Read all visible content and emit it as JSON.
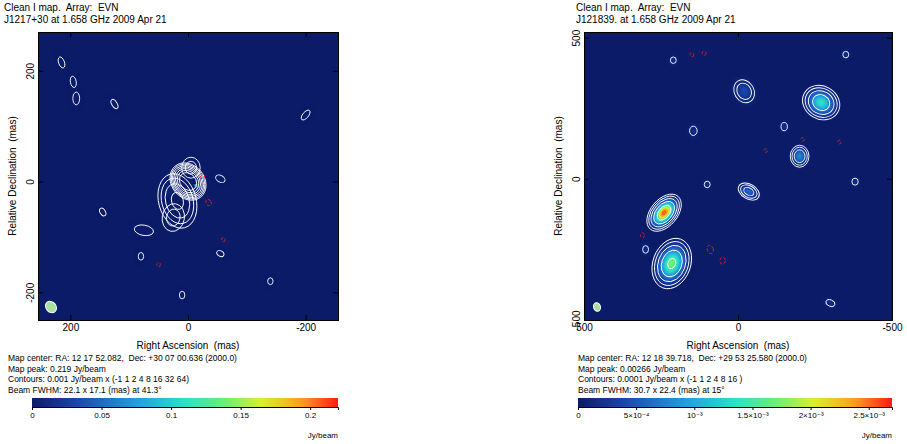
{
  "chart_data": [
    {
      "type": "contour_map",
      "title": "Clean I map.  Array:  EVN",
      "subtitle": "J1217+30 at 1.658 GHz 2009 Apr 21",
      "xlabel": "Right Ascension  (mas)",
      "ylabel": "Relative Declination  (mas)",
      "xlim": [
        255,
        -255
      ],
      "xticks": [
        200,
        0,
        -200
      ],
      "ylim": [
        -250,
        270
      ],
      "yticks": [
        -200,
        0,
        200
      ],
      "annotations": [
        "Map center: RA: 12 17 52.082,  Dec: +30 07 00.636 (2000.0)",
        "Map peak: 0.219 Jy/beam",
        "Contours: 0.001 Jy/beam x (-1 1 2 4 8 16 32 64)",
        "Beam FWHM: 22.1 x 17.1 (mas) at 41.3°"
      ],
      "contours": {
        "base": 0.001,
        "multipliers": [
          -1,
          1,
          2,
          4,
          8,
          16,
          32,
          64
        ]
      },
      "beam": {
        "major": 22.1,
        "minor": 17.1,
        "angle": 41.3
      },
      "colorbar": {
        "range": [
          0,
          0.22
        ],
        "ticks": [
          0,
          0.05,
          0.1,
          0.15,
          0.2
        ],
        "label": "Jy/beam"
      },
      "components": [
        {
          "x": 0,
          "y": 0,
          "peak": 0.219,
          "major": 26,
          "minor": 20,
          "angle": 40
        },
        {
          "x": 18,
          "y": -35,
          "peak": 0.01,
          "major": 55,
          "minor": 35,
          "angle": 15
        },
        {
          "x": 25,
          "y": -65,
          "peak": 0.003,
          "major": 40,
          "minor": 30,
          "angle": -10
        },
        {
          "x": -5,
          "y": 25,
          "peak": 0.003,
          "major": 30,
          "minor": 25,
          "angle": 0
        },
        {
          "x": 75,
          "y": -88,
          "peak": 0.0017,
          "major": 40,
          "minor": 20,
          "angle": 80
        },
        {
          "x": 215,
          "y": 215,
          "peak": 0.0016,
          "major": 25,
          "minor": 12,
          "angle": 20
        },
        {
          "x": 195,
          "y": 180,
          "peak": 0.0016,
          "major": 25,
          "minor": 12,
          "angle": 10
        },
        {
          "x": 190,
          "y": 150,
          "peak": 0.0016,
          "major": 28,
          "minor": 14,
          "angle": 0
        },
        {
          "x": 125,
          "y": 140,
          "peak": 0.0015,
          "major": 24,
          "minor": 12,
          "angle": 30
        },
        {
          "x": -55,
          "y": 5,
          "peak": 0.0016,
          "major": 22,
          "minor": 14,
          "angle": 60
        },
        {
          "x": -200,
          "y": 120,
          "peak": 0.0016,
          "major": 26,
          "minor": 12,
          "angle": -40
        },
        {
          "x": 80,
          "y": -135,
          "peak": 0.0015,
          "major": 18,
          "minor": 12,
          "angle": 0
        },
        {
          "x": 10,
          "y": -205,
          "peak": 0.0015,
          "major": 18,
          "minor": 12,
          "angle": 0
        },
        {
          "x": -55,
          "y": -130,
          "peak": 0.0015,
          "major": 18,
          "minor": 12,
          "angle": 60
        },
        {
          "x": 145,
          "y": -55,
          "peak": 0.0015,
          "major": 20,
          "minor": 12,
          "angle": 30
        },
        {
          "x": -140,
          "y": -180,
          "peak": 0.0015,
          "major": 16,
          "minor": 12,
          "angle": 0
        },
        {
          "x": -25,
          "y": 10,
          "peak": -0.0014,
          "major": 16,
          "minor": 10,
          "angle": 0
        },
        {
          "x": -35,
          "y": -38,
          "peak": -0.0014,
          "major": 18,
          "minor": 12,
          "angle": 30
        },
        {
          "x": 50,
          "y": -150,
          "peak": -0.0013,
          "major": 14,
          "minor": 10,
          "angle": 0
        },
        {
          "x": -60,
          "y": -105,
          "peak": -0.0013,
          "major": 12,
          "minor": 10,
          "angle": 0
        }
      ]
    },
    {
      "type": "contour_map",
      "title": "Clean I map.  Array:  EVN",
      "subtitle": "J121839. at 1.658 GHz 2009 Apr 21",
      "xlabel": "Right Ascension  (mas)",
      "ylabel": "Relative Declination  (mas)",
      "xlim": [
        500,
        -500
      ],
      "xticks": [
        500,
        0,
        -500
      ],
      "ylim": [
        -500,
        520
      ],
      "yticks": [
        -500,
        0,
        500
      ],
      "annotations": [
        "Map center: RA: 12 18 39.718,  Dec: +29 53 25.580 (2000.0)",
        "Map peak: 0.00266 Jy/beam",
        "Contours: 0.0001 Jy/beam x (-1 1 2 4 8 16 )",
        "Beam FWHM: 30.7 x 22.4 (mas) at 15°"
      ],
      "contours": {
        "base": 0.0001,
        "multipliers": [
          -1,
          1,
          2,
          4,
          8,
          16
        ]
      },
      "beam": {
        "major": 30.7,
        "minor": 22.4,
        "angle": 15
      },
      "colorbar": {
        "range": [
          0,
          0.0027
        ],
        "ticks": [
          0,
          {
            "value": 0.0005,
            "label": "5×10⁻⁴"
          },
          {
            "value": 0.001,
            "label": "10⁻³"
          },
          {
            "value": 0.0015,
            "label": "1.5×10⁻³"
          },
          {
            "value": 0.002,
            "label": "2×10⁻³"
          },
          {
            "value": 0.0025,
            "label": "2.5×10⁻³"
          }
        ],
        "label": "Jy/beam"
      },
      "components": [
        {
          "x": 240,
          "y": -120,
          "peak": 0.00266,
          "major": 70,
          "minor": 40,
          "angle": -40
        },
        {
          "x": 215,
          "y": -300,
          "peak": 0.0018,
          "major": 90,
          "minor": 60,
          "angle": -20
        },
        {
          "x": -35,
          "y": -45,
          "peak": 0.0006,
          "major": 50,
          "minor": 30,
          "angle": 60
        },
        {
          "x": -200,
          "y": 80,
          "peak": 0.0008,
          "major": 45,
          "minor": 35,
          "angle": 0
        },
        {
          "x": -270,
          "y": 270,
          "peak": 0.0014,
          "major": 70,
          "minor": 55,
          "angle": 60
        },
        {
          "x": -20,
          "y": 310,
          "peak": 0.0004,
          "major": 60,
          "minor": 45,
          "angle": 30
        },
        {
          "x": 145,
          "y": 170,
          "peak": 0.00016,
          "major": 40,
          "minor": 30,
          "angle": 0
        },
        {
          "x": -150,
          "y": 185,
          "peak": 0.00016,
          "major": 35,
          "minor": 25,
          "angle": 0
        },
        {
          "x": -380,
          "y": -10,
          "peak": 0.00016,
          "major": 30,
          "minor": 25,
          "angle": 0
        },
        {
          "x": -300,
          "y": -440,
          "peak": 0.00016,
          "major": 40,
          "minor": 25,
          "angle": 70
        },
        {
          "x": 300,
          "y": -250,
          "peak": 0.00015,
          "major": 35,
          "minor": 25,
          "angle": 0
        },
        {
          "x": 100,
          "y": -20,
          "peak": 0.00015,
          "major": 30,
          "minor": 25,
          "angle": 0
        },
        {
          "x": 210,
          "y": 420,
          "peak": 0.00015,
          "major": 30,
          "minor": 25,
          "angle": 0
        },
        {
          "x": -350,
          "y": 440,
          "peak": 0.00015,
          "major": 30,
          "minor": 25,
          "angle": 0
        },
        {
          "x": 90,
          "y": -250,
          "peak": -0.00015,
          "major": 40,
          "minor": 25,
          "angle": 20
        },
        {
          "x": 50,
          "y": -290,
          "peak": -0.00014,
          "major": 35,
          "minor": 25,
          "angle": 0
        },
        {
          "x": 310,
          "y": -200,
          "peak": -0.00013,
          "major": 30,
          "minor": 20,
          "angle": 0
        },
        {
          "x": -90,
          "y": 100,
          "peak": -0.00012,
          "major": 25,
          "minor": 20,
          "angle": 0
        },
        {
          "x": 150,
          "y": 440,
          "peak": -0.00013,
          "major": 25,
          "minor": 20,
          "angle": 0
        },
        {
          "x": 110,
          "y": 445,
          "peak": -0.00013,
          "major": 25,
          "minor": 20,
          "angle": 0
        },
        {
          "x": -210,
          "y": 140,
          "peak": -0.00012,
          "major": 25,
          "minor": 20,
          "angle": 0
        },
        {
          "x": -330,
          "y": 130,
          "peak": -0.00012,
          "major": 25,
          "minor": 20,
          "angle": 0
        }
      ]
    }
  ]
}
